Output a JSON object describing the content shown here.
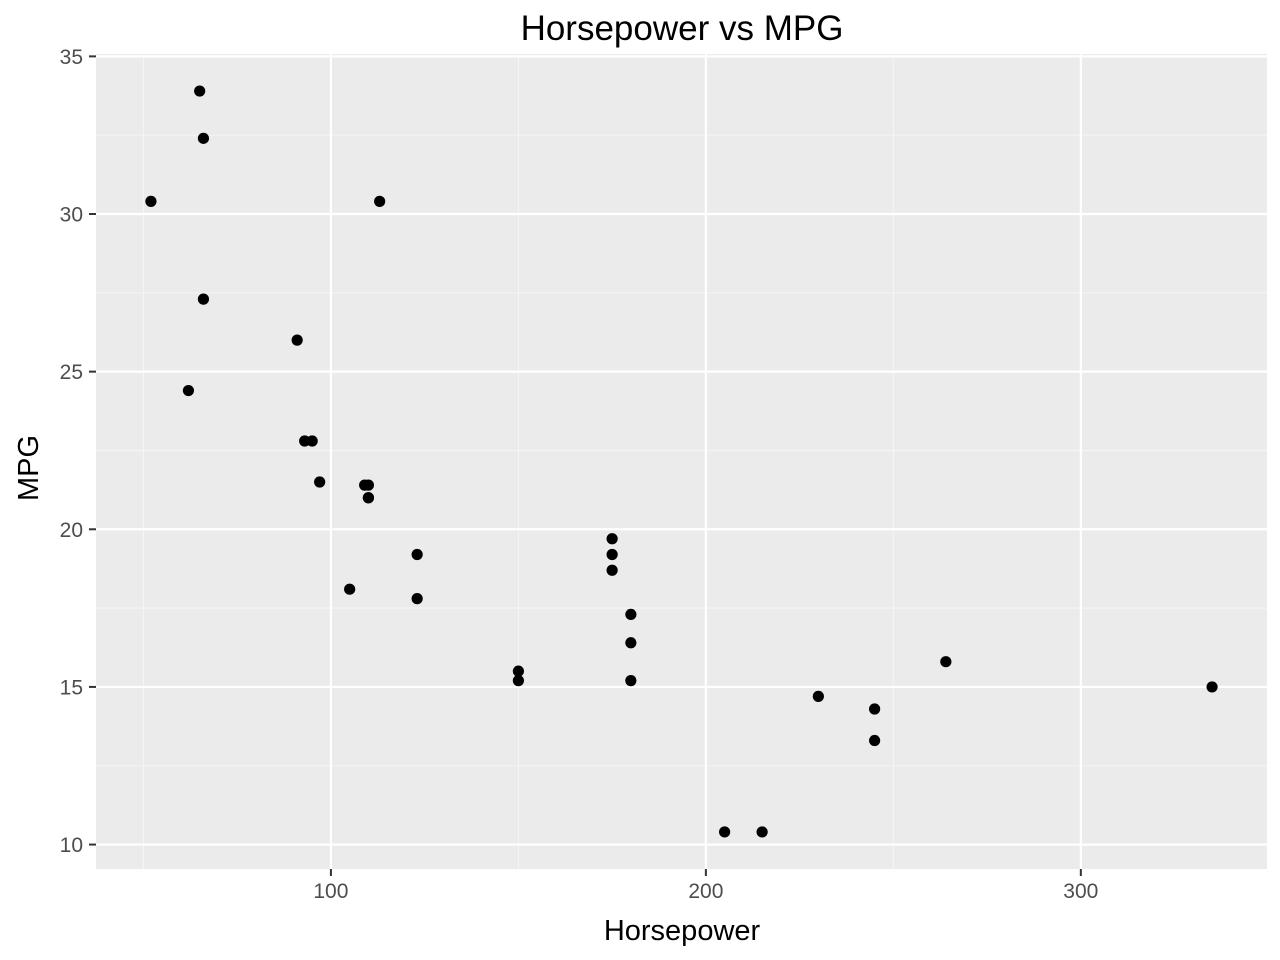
{
  "chart_data": {
    "type": "scatter",
    "title": "Horsepower vs MPG",
    "xlabel": "Horsepower",
    "ylabel": "MPG",
    "xlim": [
      37.35,
      349.65
    ],
    "ylim": [
      9.225,
      35.075
    ],
    "x_ticks": [
      100,
      200,
      300
    ],
    "x_tick_labels": [
      "100",
      "200",
      "300"
    ],
    "x_minor_ticks": [
      50,
      150,
      250
    ],
    "y_ticks": [
      10,
      15,
      20,
      25,
      30,
      35
    ],
    "y_tick_labels": [
      "10",
      "15",
      "20",
      "25",
      "30",
      "35"
    ],
    "y_minor_ticks": [
      12.5,
      17.5,
      22.5,
      27.5,
      32.5
    ],
    "grid": true,
    "legend": "none",
    "points": [
      {
        "x": 110,
        "y": 21.0
      },
      {
        "x": 110,
        "y": 21.0
      },
      {
        "x": 93,
        "y": 22.8
      },
      {
        "x": 110,
        "y": 21.4
      },
      {
        "x": 175,
        "y": 18.7
      },
      {
        "x": 105,
        "y": 18.1
      },
      {
        "x": 245,
        "y": 14.3
      },
      {
        "x": 62,
        "y": 24.4
      },
      {
        "x": 95,
        "y": 22.8
      },
      {
        "x": 123,
        "y": 19.2
      },
      {
        "x": 123,
        "y": 17.8
      },
      {
        "x": 180,
        "y": 16.4
      },
      {
        "x": 180,
        "y": 17.3
      },
      {
        "x": 180,
        "y": 15.2
      },
      {
        "x": 205,
        "y": 10.4
      },
      {
        "x": 215,
        "y": 10.4
      },
      {
        "x": 230,
        "y": 14.7
      },
      {
        "x": 66,
        "y": 32.4
      },
      {
        "x": 52,
        "y": 30.4
      },
      {
        "x": 65,
        "y": 33.9
      },
      {
        "x": 97,
        "y": 21.5
      },
      {
        "x": 150,
        "y": 15.5
      },
      {
        "x": 150,
        "y": 15.2
      },
      {
        "x": 245,
        "y": 13.3
      },
      {
        "x": 175,
        "y": 19.2
      },
      {
        "x": 66,
        "y": 27.3
      },
      {
        "x": 91,
        "y": 26.0
      },
      {
        "x": 113,
        "y": 30.4
      },
      {
        "x": 264,
        "y": 15.8
      },
      {
        "x": 175,
        "y": 19.7
      },
      {
        "x": 335,
        "y": 15.0
      },
      {
        "x": 109,
        "y": 21.4
      }
    ]
  },
  "colors": {
    "panel_background": "#ebebeb",
    "grid_major": "#ffffff",
    "grid_minor": "#f5f5f5",
    "point": "#000000",
    "tick_label": "#4d4d4d",
    "tick_mark": "#333333"
  }
}
